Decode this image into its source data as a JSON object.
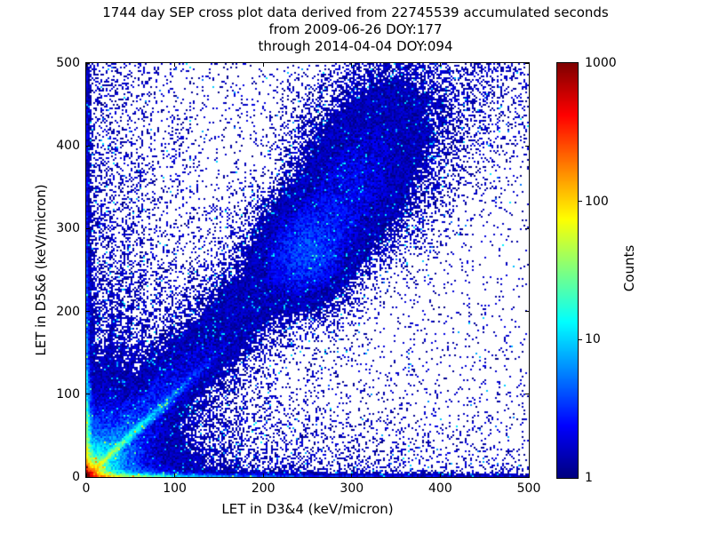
{
  "chart_data": {
    "type": "heatmap",
    "title_lines": [
      "1744 day SEP cross plot data derived from 22745539 accumulated seconds",
      "from 2009-06-26 DOY:177",
      "through 2014-04-04 DOY:094"
    ],
    "xlabel": "LET in D3&4 (keV/micron)",
    "ylabel": "LET in D5&6 (keV/micron)",
    "xlim": [
      0,
      500
    ],
    "ylim": [
      0,
      500
    ],
    "xticks": [
      0,
      100,
      200,
      300,
      400,
      500
    ],
    "yticks": [
      0,
      100,
      200,
      300,
      400,
      500
    ],
    "grid": false,
    "colorbar": {
      "label": "Counts",
      "scale": "log",
      "min": 1,
      "max": 1000,
      "ticks": [
        1,
        10,
        100,
        1000
      ],
      "colormap": "jet"
    },
    "stats": {
      "days": 1744,
      "accumulated_seconds": 22745539,
      "start_date": "2009-06-26",
      "start_doy": 177,
      "end_date": "2014-04-04",
      "end_doy": 94
    },
    "density_model": {
      "seed": 20140404,
      "cell_units": 2,
      "features": [
        {
          "type": "blob",
          "x": 0,
          "y": 0,
          "amp": 1400,
          "scale": 4.5
        },
        {
          "type": "blob",
          "x": 0,
          "y": 0,
          "amp": 60,
          "scale": 14
        },
        {
          "type": "blob",
          "x": 0,
          "y": 0,
          "amp": 6,
          "scale": 38
        },
        {
          "type": "blob",
          "x": 0,
          "y": 0,
          "amp": 1.2,
          "scale": 90
        },
        {
          "type": "band",
          "amp": 320,
          "xscale": 28,
          "yscale": 2.0
        },
        {
          "type": "band",
          "amp": 12,
          "xscale": 200,
          "yscale": 2.2
        },
        {
          "type": "band",
          "amp": 0.9,
          "xscale": 2600,
          "yscale": 3.2
        },
        {
          "type": "band",
          "amp": 320,
          "xscale": 2.0,
          "yscale": 28
        },
        {
          "type": "band",
          "amp": 12,
          "xscale": 2.2,
          "yscale": 200
        },
        {
          "type": "band",
          "amp": 0.9,
          "xscale": 3.2,
          "yscale": 2600
        },
        {
          "type": "diag",
          "slope": 1.0,
          "amp": 70,
          "rscale": 45,
          "w0": 1.6,
          "wgrow": 0.012
        },
        {
          "type": "diag",
          "slope": 1.15,
          "amp": 3.2,
          "rscale": 260,
          "w0": 4,
          "wgrow": 0.1
        },
        {
          "type": "knot",
          "x": 250,
          "y": 270,
          "amp": 2.6,
          "sx": 30,
          "sy": 38
        },
        {
          "type": "knot",
          "x": 300,
          "y": 350,
          "amp": 1.4,
          "sx": 40,
          "sy": 50
        },
        {
          "type": "knot",
          "x": 340,
          "y": 435,
          "amp": 0.8,
          "sx": 45,
          "sy": 55
        },
        {
          "type": "ray",
          "slope": 1.45,
          "amp": 2.4,
          "rscale": 90,
          "w": 1.6
        },
        {
          "type": "ray",
          "slope": 1.95,
          "amp": 1.8,
          "rscale": 100,
          "w": 1.8
        },
        {
          "type": "ray",
          "slope": 2.7,
          "amp": 1.6,
          "rscale": 110,
          "w": 2.0
        },
        {
          "type": "ray",
          "slope": 3.8,
          "amp": 1.4,
          "rscale": 120,
          "w": 2.2
        },
        {
          "type": "ray",
          "slope": 6.0,
          "amp": 1.2,
          "rscale": 130,
          "w": 2.5
        },
        {
          "type": "ray",
          "slope": 0.66,
          "amp": 1.3,
          "rscale": 90,
          "w": 1.8
        },
        {
          "type": "ray",
          "slope": 0.5,
          "amp": 0.9,
          "rscale": 90,
          "w": 2.0
        },
        {
          "type": "vline",
          "x": 28,
          "amp": 0.5,
          "w": 1.6,
          "yscale": 260
        },
        {
          "type": "vline",
          "x": 40,
          "amp": 0.45,
          "w": 1.6,
          "yscale": 260
        },
        {
          "type": "vline",
          "x": 50,
          "amp": 0.4,
          "w": 1.6,
          "yscale": 260
        },
        {
          "type": "vline",
          "x": 63,
          "amp": 0.3,
          "w": 1.8,
          "yscale": 400
        },
        {
          "type": "band",
          "amp": 0.55,
          "xscale": 55,
          "yscale": 600
        },
        {
          "type": "band",
          "amp": 0.5,
          "xscale": 600,
          "yscale": 45
        },
        {
          "type": "band",
          "amp": 0.05,
          "xscale": 300
        },
        {
          "type": "bg",
          "amp": 0.03
        }
      ]
    },
    "colors": {
      "background": "#ffffff",
      "axis": "#000000",
      "low_count": "#00007f",
      "high_count": "#7f0000"
    }
  }
}
